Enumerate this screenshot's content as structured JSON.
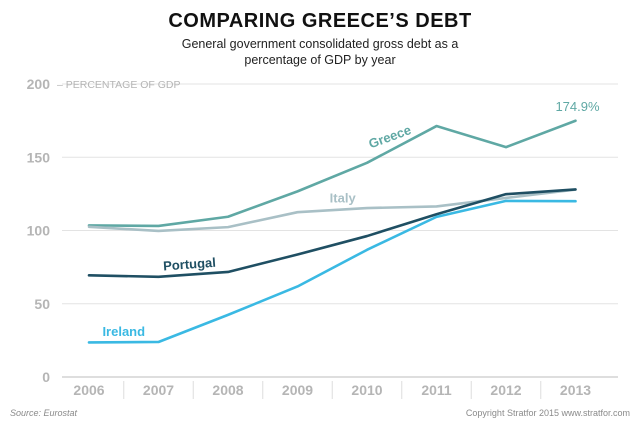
{
  "header": {
    "title": "COMPARING GREECE’S DEBT",
    "subtitle": "General government consolidated gross debt as a percentage of GDP by year"
  },
  "footer": {
    "source": "Source: Eurostat",
    "copyright": "Copyright Stratfor 2015   www.stratfor.com"
  },
  "chart_data": {
    "type": "line",
    "title": "COMPARING GREECE’S DEBT",
    "subtitle": "General government consolidated gross debt as a percentage of GDP by year",
    "xlabel": "",
    "ylabel": "– PERCENTAGE OF GDP",
    "ylim": [
      0,
      200
    ],
    "yticks": [
      0,
      50,
      100,
      150,
      200
    ],
    "x": [
      "2006",
      "2007",
      "2008",
      "2009",
      "2010",
      "2011",
      "2012",
      "2013"
    ],
    "grid": true,
    "series": [
      {
        "name": "Greece",
        "color": "#5fa8a4",
        "values": [
          103.5,
          103.1,
          109.4,
          126.7,
          146.2,
          171.3,
          156.9,
          174.9
        ]
      },
      {
        "name": "Italy",
        "color": "#a9c0c6",
        "values": [
          102.5,
          99.7,
          102.3,
          112.5,
          115.3,
          116.4,
          122.2,
          127.9
        ]
      },
      {
        "name": "Portugal",
        "color": "#1f4f63",
        "values": [
          69.4,
          68.4,
          71.7,
          83.6,
          96.2,
          111.1,
          124.8,
          128.0
        ]
      },
      {
        "name": "Ireland",
        "color": "#3ab9e3",
        "values": [
          23.6,
          23.9,
          42.4,
          61.8,
          86.8,
          109.3,
          120.2,
          120.0
        ]
      }
    ],
    "annotations": [
      {
        "series": "Greece",
        "text": "174.9%"
      }
    ]
  }
}
